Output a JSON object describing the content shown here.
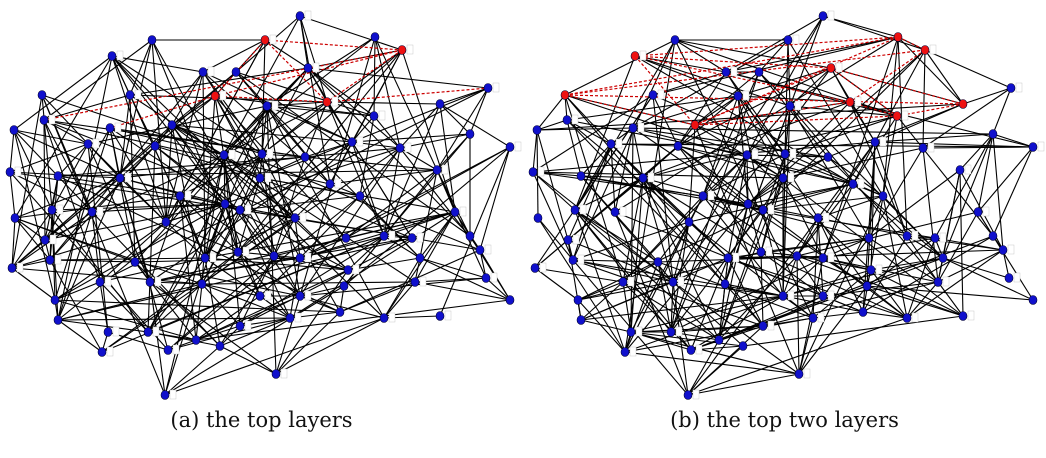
{
  "figure": {
    "panels": [
      {
        "id": "a",
        "caption": "(a) the top layers",
        "red_nodes": [
          3,
          5,
          9,
          12
        ],
        "red_edges": [
          [
            3,
            5
          ],
          [
            5,
            9
          ],
          [
            3,
            9
          ],
          [
            9,
            12
          ],
          [
            5,
            12
          ],
          [
            3,
            12
          ],
          [
            12,
            20
          ],
          [
            9,
            17
          ],
          [
            5,
            18
          ]
        ]
      },
      {
        "id": "b",
        "caption": "(b) the top two layers",
        "red_nodes": [
          2,
          4,
          5,
          8,
          9,
          10,
          13,
          15,
          16
        ],
        "red_edges": [
          [
            2,
            4
          ],
          [
            4,
            5
          ],
          [
            5,
            9
          ],
          [
            2,
            9
          ],
          [
            8,
            13
          ],
          [
            9,
            13
          ],
          [
            10,
            13
          ],
          [
            13,
            15
          ],
          [
            15,
            16
          ],
          [
            8,
            16
          ],
          [
            4,
            10
          ],
          [
            2,
            8
          ],
          [
            5,
            10
          ],
          [
            9,
            15
          ],
          [
            10,
            16
          ],
          [
            4,
            13
          ],
          [
            2,
            13
          ],
          [
            8,
            15
          ]
        ]
      }
    ],
    "colors": {
      "edge": "#000000",
      "highlight_edge": "#cc0000",
      "node": "#1010cc",
      "highlight_node": "#ee1111",
      "tag": "#ffffff"
    }
  }
}
